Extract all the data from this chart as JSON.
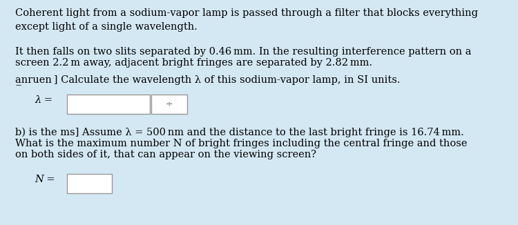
{
  "background_color": "#d4e8f4",
  "text_color": "#000000",
  "font_size": 10.5,
  "p1": "Coherent light from a sodium-vapor lamp is passed through a filter that blocks everything\nexcept light of a single wavelength.",
  "p2_pre": "It then falls on two slits separated by 0.46 ",
  "p2_mm1": "mm",
  "p2_mid": ". In the resulting interference pattern on a\nscreen 2.2 ",
  "p2_m": "m",
  "p2_post": " away, adjacent bright fringes are separated by 2.82 ",
  "p2_mm2": "mm",
  "p2_end": ".",
  "pa": "a̲̲nruen ] Calculate the wavelength λ of this sodium-vapor lamp, in SI units.",
  "lambda_eq": "λ =",
  "pb1": "b) is the ms] Assume λ = 500 ",
  "pb1_nm": "nm",
  "pb1_end": " and the distance to the last bright fringe is 16.74 ",
  "pb1_mm": "mm",
  "pb1_dot": ".",
  "pb2": "What is the maximum number N of bright fringes including the central fringe and those",
  "pb3": "on both sides of it, that can appear on the viewing screen?",
  "N_eq": "N ="
}
